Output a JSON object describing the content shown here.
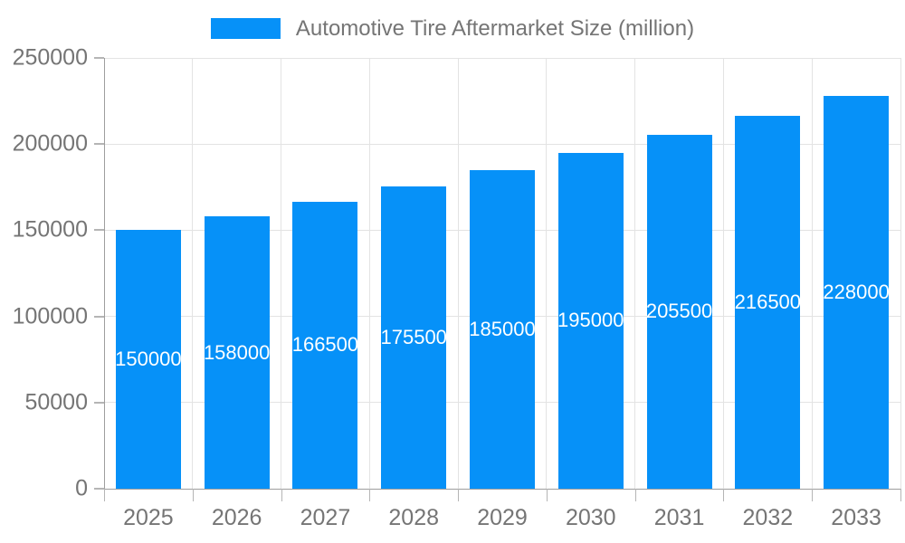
{
  "chart_data": {
    "type": "bar",
    "title": "Automotive Tire Aftermarket Size (million)",
    "categories": [
      "2025",
      "2026",
      "2027",
      "2028",
      "2029",
      "2030",
      "2031",
      "2032",
      "2033"
    ],
    "values": [
      150000,
      158000,
      166500,
      175500,
      185000,
      195000,
      205500,
      216500,
      228000
    ],
    "bar_labels": [
      "150000",
      "158000",
      "166500",
      "175500",
      "185000",
      "195000",
      "205500",
      "216500",
      "228000"
    ],
    "xlabel": "",
    "ylabel": "",
    "ylim": [
      0,
      250000
    ],
    "ytick_interval": 50000,
    "yticks": [
      "0",
      "50000",
      "100000",
      "150000",
      "200000",
      "250000"
    ],
    "grid": true,
    "legend_position": "top-center",
    "colors": {
      "bar": "#0691f8",
      "bar_label_text": "#ffffff",
      "axis_text": "#757575",
      "legend_text": "#757575",
      "gridline": "#e3e3e3",
      "axis_line": "#9e9e9e",
      "tick": "#b5b5b5",
      "background": "#ffffff"
    }
  }
}
